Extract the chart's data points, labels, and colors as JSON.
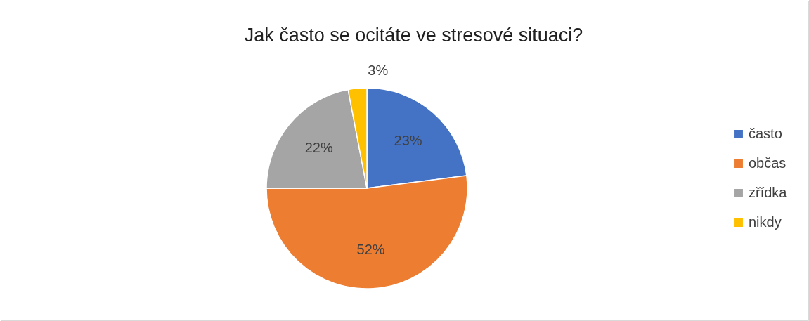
{
  "chart_data": {
    "type": "pie",
    "title": "Jak často se ocitáte ve stresové situaci?",
    "categories": [
      "často",
      "občas",
      "zřídka",
      "nikdy"
    ],
    "values": [
      23,
      52,
      22,
      3
    ],
    "colors": [
      "#4472c4",
      "#ed7d31",
      "#a5a5a5",
      "#ffc000"
    ],
    "value_labels": [
      "23%",
      "52%",
      "22%",
      "3%"
    ],
    "legend": "right"
  }
}
